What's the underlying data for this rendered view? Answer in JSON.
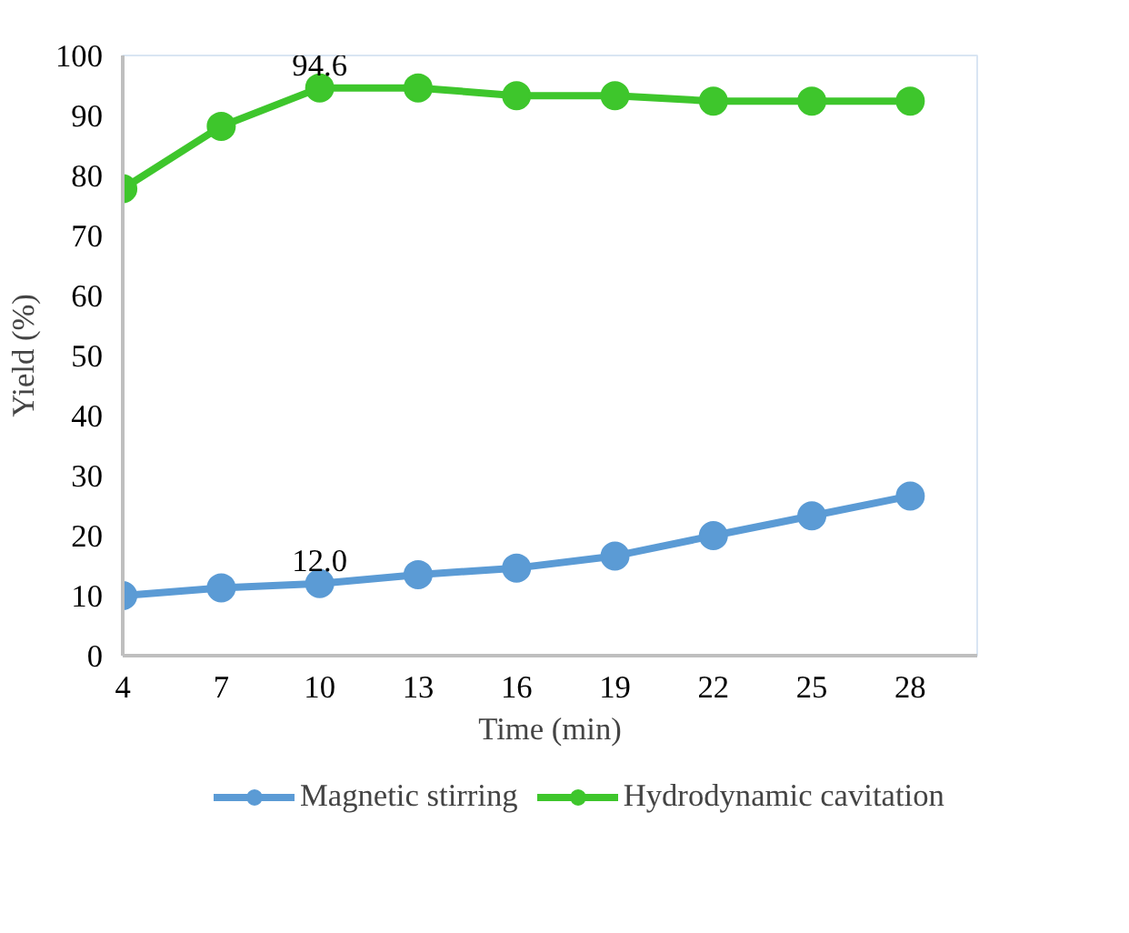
{
  "chart_data": {
    "type": "line",
    "xlabel": "Time (min)",
    "ylabel": "Yield (%)",
    "categories": [
      "4",
      "7",
      "10",
      "13",
      "16",
      "19",
      "22",
      "25",
      "28"
    ],
    "ylim": [
      0,
      100
    ],
    "yticks": [
      0,
      10,
      20,
      30,
      40,
      50,
      60,
      70,
      80,
      90,
      100
    ],
    "grid": false,
    "legend": "bottom",
    "marker": "circle",
    "line_style": "solid",
    "series": [
      {
        "name": "Magnetic stirring",
        "color": "#5b9bd5",
        "values": [
          10.0,
          11.3,
          12.0,
          13.5,
          14.6,
          16.6,
          20.0,
          23.3,
          26.6
        ],
        "value_labels": [
          null,
          null,
          "12.0",
          null,
          null,
          null,
          null,
          null,
          null
        ]
      },
      {
        "name": "Hydrodynamic cavitation",
        "color": "#3ec62c",
        "values": [
          77.8,
          88.2,
          94.6,
          94.6,
          93.3,
          93.3,
          92.4,
          92.4,
          92.4
        ],
        "value_labels": [
          null,
          null,
          "94.6",
          null,
          null,
          null,
          null,
          null,
          null
        ]
      }
    ]
  }
}
